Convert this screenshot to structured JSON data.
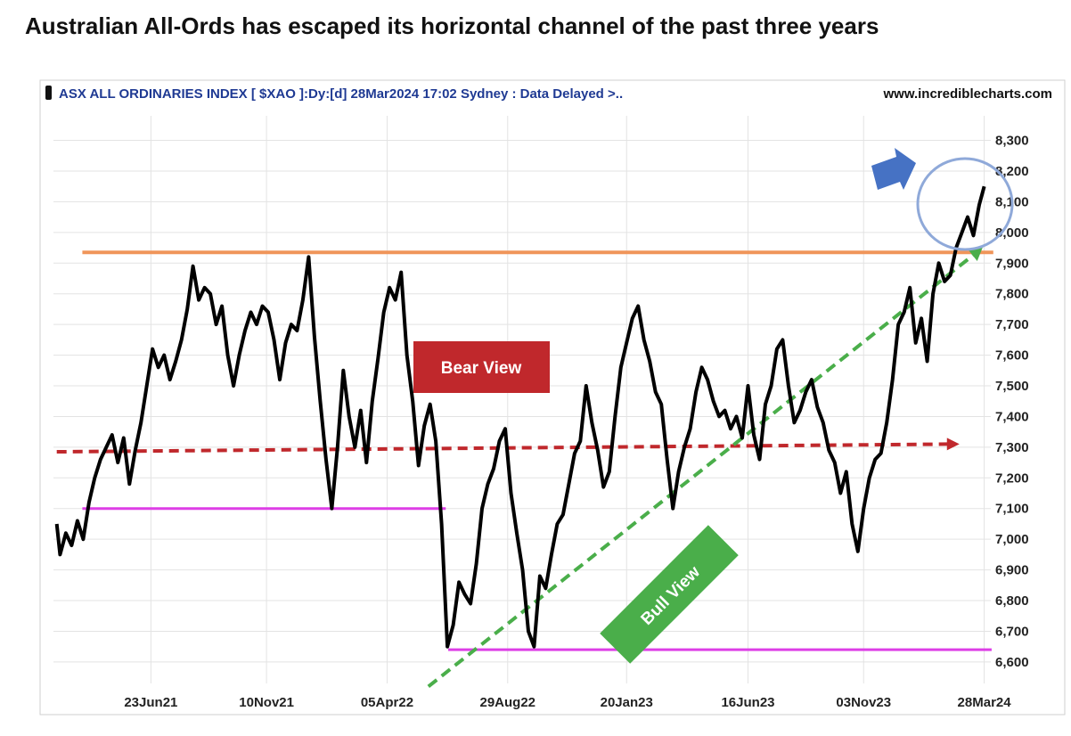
{
  "title": "Australian All-Ords has escaped its horizontal channel of the past three years",
  "header": {
    "instrument": "ASX ALL ORDINARIES INDEX [ $XAO ]:Dy:[d]  28Mar2024 17:02 Sydney : Data Delayed >..",
    "source": "www.incrediblecharts.com"
  },
  "annotations": {
    "bear_label": "Bear View",
    "bull_label": "Bull View"
  },
  "colors": {
    "price": "#000000",
    "resistance": "#f0955a",
    "support": "#dd3ee6",
    "bear": "#c0282c",
    "bull": "#4aae4a",
    "circle": "#8fa9d9",
    "arrow": "#4672c4",
    "header_text": "#1f3a93"
  },
  "chart_data": {
    "type": "line",
    "series": [
      {
        "values": [
          [
            "2021-03-01",
            7050
          ],
          [
            "2021-03-05",
            6950
          ],
          [
            "2021-03-12",
            7020
          ],
          [
            "2021-03-19",
            6980
          ],
          [
            "2021-03-26",
            7060
          ],
          [
            "2021-04-02",
            7000
          ],
          [
            "2021-04-09",
            7120
          ],
          [
            "2021-04-16",
            7200
          ],
          [
            "2021-04-23",
            7260
          ],
          [
            "2021-04-30",
            7300
          ],
          [
            "2021-05-07",
            7340
          ],
          [
            "2021-05-14",
            7250
          ],
          [
            "2021-05-21",
            7330
          ],
          [
            "2021-05-28",
            7180
          ],
          [
            "2021-06-04",
            7290
          ],
          [
            "2021-06-11",
            7380
          ],
          [
            "2021-06-18",
            7500
          ],
          [
            "2021-06-25",
            7620
          ],
          [
            "2021-07-02",
            7560
          ],
          [
            "2021-07-09",
            7600
          ],
          [
            "2021-07-16",
            7520
          ],
          [
            "2021-07-23",
            7580
          ],
          [
            "2021-07-30",
            7650
          ],
          [
            "2021-08-06",
            7750
          ],
          [
            "2021-08-13",
            7890
          ],
          [
            "2021-08-20",
            7780
          ],
          [
            "2021-08-27",
            7820
          ],
          [
            "2021-09-03",
            7800
          ],
          [
            "2021-09-10",
            7700
          ],
          [
            "2021-09-17",
            7760
          ],
          [
            "2021-09-24",
            7600
          ],
          [
            "2021-10-01",
            7500
          ],
          [
            "2021-10-08",
            7600
          ],
          [
            "2021-10-15",
            7680
          ],
          [
            "2021-10-22",
            7740
          ],
          [
            "2021-10-29",
            7700
          ],
          [
            "2021-11-05",
            7760
          ],
          [
            "2021-11-12",
            7740
          ],
          [
            "2021-11-19",
            7650
          ],
          [
            "2021-11-26",
            7520
          ],
          [
            "2021-12-03",
            7640
          ],
          [
            "2021-12-10",
            7700
          ],
          [
            "2021-12-17",
            7680
          ],
          [
            "2021-12-24",
            7780
          ],
          [
            "2021-12-31",
            7920
          ],
          [
            "2022-01-07",
            7660
          ],
          [
            "2022-01-14",
            7450
          ],
          [
            "2022-01-21",
            7260
          ],
          [
            "2022-01-28",
            7100
          ],
          [
            "2022-02-04",
            7300
          ],
          [
            "2022-02-11",
            7550
          ],
          [
            "2022-02-18",
            7400
          ],
          [
            "2022-02-25",
            7300
          ],
          [
            "2022-03-04",
            7420
          ],
          [
            "2022-03-11",
            7250
          ],
          [
            "2022-03-18",
            7450
          ],
          [
            "2022-03-25",
            7590
          ],
          [
            "2022-04-01",
            7740
          ],
          [
            "2022-04-08",
            7820
          ],
          [
            "2022-04-15",
            7780
          ],
          [
            "2022-04-22",
            7870
          ],
          [
            "2022-04-29",
            7600
          ],
          [
            "2022-05-06",
            7450
          ],
          [
            "2022-05-13",
            7240
          ],
          [
            "2022-05-20",
            7370
          ],
          [
            "2022-05-27",
            7440
          ],
          [
            "2022-06-03",
            7320
          ],
          [
            "2022-06-10",
            7050
          ],
          [
            "2022-06-17",
            6650
          ],
          [
            "2022-06-24",
            6720
          ],
          [
            "2022-07-01",
            6860
          ],
          [
            "2022-07-08",
            6820
          ],
          [
            "2022-07-15",
            6790
          ],
          [
            "2022-07-22",
            6920
          ],
          [
            "2022-07-29",
            7100
          ],
          [
            "2022-08-05",
            7180
          ],
          [
            "2022-08-12",
            7230
          ],
          [
            "2022-08-19",
            7320
          ],
          [
            "2022-08-26",
            7360
          ],
          [
            "2022-09-02",
            7150
          ],
          [
            "2022-09-09",
            7020
          ],
          [
            "2022-09-16",
            6900
          ],
          [
            "2022-09-23",
            6700
          ],
          [
            "2022-09-30",
            6650
          ],
          [
            "2022-10-07",
            6880
          ],
          [
            "2022-10-14",
            6840
          ],
          [
            "2022-10-21",
            6950
          ],
          [
            "2022-10-28",
            7050
          ],
          [
            "2022-11-04",
            7080
          ],
          [
            "2022-11-11",
            7180
          ],
          [
            "2022-11-18",
            7280
          ],
          [
            "2022-11-25",
            7320
          ],
          [
            "2022-12-02",
            7500
          ],
          [
            "2022-12-09",
            7380
          ],
          [
            "2022-12-16",
            7290
          ],
          [
            "2022-12-23",
            7170
          ],
          [
            "2022-12-30",
            7220
          ],
          [
            "2023-01-06",
            7400
          ],
          [
            "2023-01-13",
            7560
          ],
          [
            "2023-01-20",
            7640
          ],
          [
            "2023-01-27",
            7720
          ],
          [
            "2023-02-03",
            7760
          ],
          [
            "2023-02-10",
            7650
          ],
          [
            "2023-02-17",
            7580
          ],
          [
            "2023-02-24",
            7480
          ],
          [
            "2023-03-03",
            7440
          ],
          [
            "2023-03-10",
            7260
          ],
          [
            "2023-03-17",
            7100
          ],
          [
            "2023-03-24",
            7220
          ],
          [
            "2023-03-31",
            7300
          ],
          [
            "2023-04-07",
            7360
          ],
          [
            "2023-04-14",
            7480
          ],
          [
            "2023-04-21",
            7560
          ],
          [
            "2023-04-28",
            7520
          ],
          [
            "2023-05-05",
            7450
          ],
          [
            "2023-05-12",
            7400
          ],
          [
            "2023-05-19",
            7420
          ],
          [
            "2023-05-26",
            7360
          ],
          [
            "2023-06-02",
            7400
          ],
          [
            "2023-06-09",
            7330
          ],
          [
            "2023-06-16",
            7500
          ],
          [
            "2023-06-23",
            7340
          ],
          [
            "2023-06-30",
            7260
          ],
          [
            "2023-07-07",
            7440
          ],
          [
            "2023-07-14",
            7500
          ],
          [
            "2023-07-21",
            7620
          ],
          [
            "2023-07-28",
            7650
          ],
          [
            "2023-08-04",
            7500
          ],
          [
            "2023-08-11",
            7380
          ],
          [
            "2023-08-18",
            7420
          ],
          [
            "2023-08-25",
            7480
          ],
          [
            "2023-09-01",
            7520
          ],
          [
            "2023-09-08",
            7430
          ],
          [
            "2023-09-15",
            7380
          ],
          [
            "2023-09-22",
            7290
          ],
          [
            "2023-09-29",
            7250
          ],
          [
            "2023-10-06",
            7150
          ],
          [
            "2023-10-13",
            7220
          ],
          [
            "2023-10-20",
            7050
          ],
          [
            "2023-10-27",
            6960
          ],
          [
            "2023-11-03",
            7100
          ],
          [
            "2023-11-10",
            7200
          ],
          [
            "2023-11-17",
            7260
          ],
          [
            "2023-11-24",
            7280
          ],
          [
            "2023-12-01",
            7380
          ],
          [
            "2023-12-08",
            7520
          ],
          [
            "2023-12-15",
            7700
          ],
          [
            "2023-12-22",
            7740
          ],
          [
            "2023-12-29",
            7820
          ],
          [
            "2024-01-05",
            7640
          ],
          [
            "2024-01-12",
            7720
          ],
          [
            "2024-01-19",
            7580
          ],
          [
            "2024-01-26",
            7800
          ],
          [
            "2024-02-02",
            7900
          ],
          [
            "2024-02-09",
            7840
          ],
          [
            "2024-02-16",
            7860
          ],
          [
            "2024-02-23",
            7950
          ],
          [
            "2024-03-01",
            8000
          ],
          [
            "2024-03-08",
            8050
          ],
          [
            "2024-03-15",
            7990
          ],
          [
            "2024-03-22",
            8090
          ],
          [
            "2024-03-28",
            8150
          ]
        ]
      }
    ],
    "x_ticks": [
      "23Jun21",
      "10Nov21",
      "05Apr22",
      "29Aug22",
      "20Jan23",
      "16Jun23",
      "03Nov23",
      "28Mar24"
    ],
    "y_ticks": [
      "6,600",
      "6,700",
      "6,800",
      "6,900",
      "7,000",
      "7,100",
      "7,200",
      "7,300",
      "7,400",
      "7,500",
      "7,600",
      "7,700",
      "7,800",
      "7,900",
      "8,000",
      "8,100",
      "8,200",
      "8,300"
    ],
    "ylim": [
      6530,
      8380
    ],
    "xlim": [
      "2021-02-25",
      "2024-04-05"
    ],
    "overlays": {
      "resistance": {
        "start": "2021-04-01",
        "end": "2024-04-08",
        "value": 7935
      },
      "support_upper": {
        "start": "2021-04-01",
        "end": "2022-06-15",
        "value": 7100
      },
      "support_lower": {
        "start": "2022-06-18",
        "end": "2024-04-06",
        "value": 6640
      },
      "bear_trend": {
        "start": "2021-03-01",
        "end": "2024-02-27",
        "value_start": 7285,
        "value_end": 7310
      },
      "bull_trend": {
        "start": "2022-05-25",
        "end": "2024-03-26",
        "value_start": 6520,
        "value_end": 7950
      }
    }
  }
}
